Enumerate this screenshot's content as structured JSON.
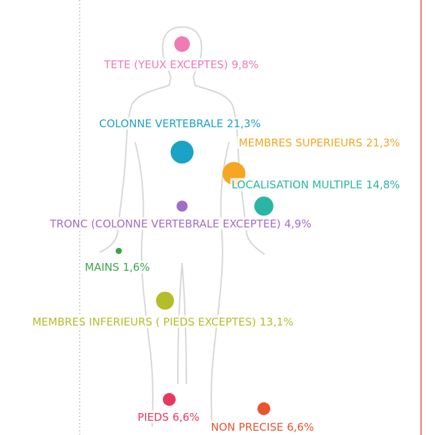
{
  "chart_data": {
    "type": "bubble",
    "categories": [
      "TETE (YEUX EXCEPTES)",
      "COLONNE VERTEBRALE",
      "MEMBRES SUPERIEURS",
      "LOCALISATION MULTIPLE",
      "TRONC (COLONNE VERTEBRALE EXCEPTEE)",
      "MAINS",
      "MEMBRES INFERIEURS ( PIEDS EXCEPTES)",
      "PIEDS",
      "NON PRECISE"
    ],
    "values": [
      9.8,
      21.3,
      21.3,
      14.8,
      4.9,
      1.6,
      13.1,
      6.6,
      6.6
    ],
    "value_labels": [
      "9,8%",
      "21,3%",
      "21,3%",
      "14,8%",
      "4,9%",
      "1,6%",
      "13,1%",
      "6,6%",
      "6,6%"
    ],
    "colors": [
      "#f07ab4",
      "#1ba3c6",
      "#f5a623",
      "#2bb5a4",
      "#a26dc7",
      "#3aa64c",
      "#b5bd2a",
      "#e8385e",
      "#e9542f"
    ]
  }
}
